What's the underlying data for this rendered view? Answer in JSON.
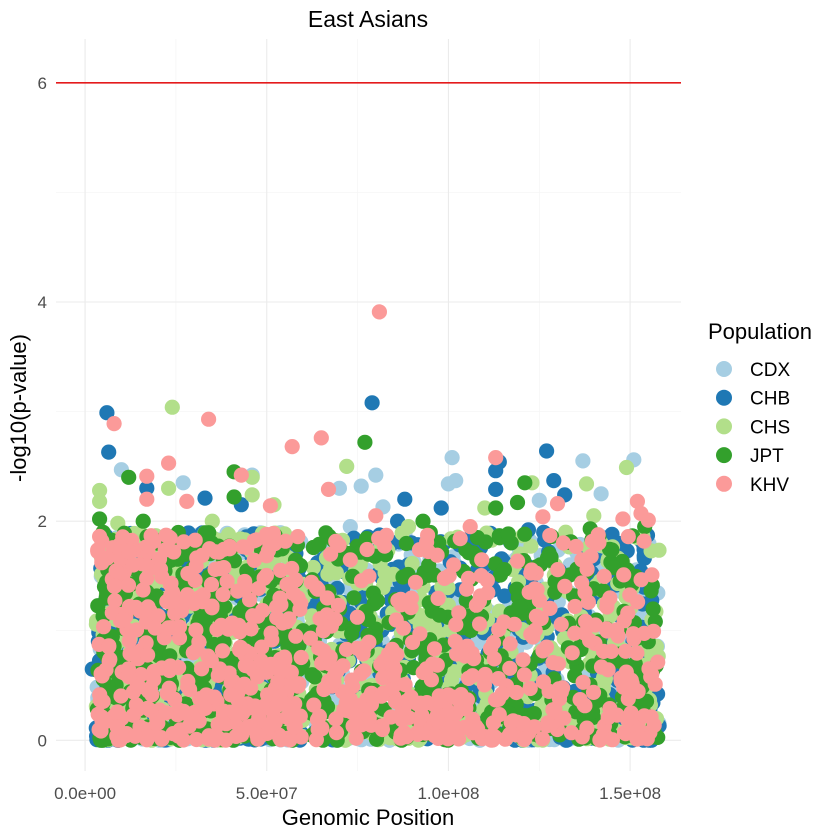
{
  "chart_data": {
    "type": "scatter",
    "title": "East Asians",
    "xlabel": "Genomic Position",
    "ylabel": "-log10(p-value)",
    "xlim": [
      -8000000,
      164000000
    ],
    "ylim": [
      -0.28,
      6.4
    ],
    "x_ticks": [
      0,
      50000000,
      100000000,
      150000000
    ],
    "x_tick_labels": [
      "0.0e+00",
      "5.0e+07",
      "1.0e+08",
      "1.5e+08"
    ],
    "y_ticks": [
      0,
      2,
      4,
      6
    ],
    "y_tick_labels": [
      "0",
      "2",
      "4",
      "6"
    ],
    "grid": true,
    "threshold": {
      "y": 6,
      "color": "#e41a1c"
    },
    "legend": {
      "title": "Population",
      "placement": "right"
    },
    "series": [
      {
        "name": "CDX",
        "color": "#a6cee3",
        "points": [
          [
            10000000,
            2.47
          ],
          [
            27000000,
            2.35
          ],
          [
            46000000,
            2.42
          ],
          [
            70000000,
            2.3
          ],
          [
            73000000,
            1.95
          ],
          [
            76000000,
            2.32
          ],
          [
            80000000,
            2.42
          ],
          [
            82000000,
            2.13
          ],
          [
            100000000,
            2.34
          ],
          [
            101000000,
            2.58
          ],
          [
            102000000,
            2.37
          ],
          [
            125000000,
            2.19
          ],
          [
            137000000,
            2.55
          ],
          [
            142000000,
            2.25
          ],
          [
            151000000,
            2.56
          ],
          [
            155000000,
            1.25
          ],
          [
            58000000,
            1.55
          ],
          [
            30000000,
            1.6
          ]
        ]
      },
      {
        "name": "CHB",
        "color": "#1f78b4",
        "points": [
          [
            6000000,
            2.99
          ],
          [
            6500000,
            2.63
          ],
          [
            17000000,
            2.3
          ],
          [
            33000000,
            2.21
          ],
          [
            43000000,
            2.15
          ],
          [
            79000000,
            3.08
          ],
          [
            88000000,
            2.2
          ],
          [
            98000000,
            2.12
          ],
          [
            114000000,
            2.54
          ],
          [
            113000000,
            2.46
          ],
          [
            113000000,
            2.29
          ],
          [
            122000000,
            1.92
          ],
          [
            127000000,
            2.64
          ],
          [
            129000000,
            2.37
          ],
          [
            132000000,
            2.24
          ],
          [
            145000000,
            1.88
          ],
          [
            156000000,
            0.45
          ],
          [
            2000000,
            0.65
          ],
          [
            64000000,
            1.62
          ],
          [
            62000000,
            1.45
          ],
          [
            86000000,
            2.0
          ]
        ]
      },
      {
        "name": "CHS",
        "color": "#b2df8a",
        "points": [
          [
            4000000,
            2.28
          ],
          [
            4000000,
            2.18
          ],
          [
            9000000,
            1.98
          ],
          [
            24000000,
            3.04
          ],
          [
            23000000,
            2.3
          ],
          [
            46000000,
            2.4
          ],
          [
            46000000,
            2.24
          ],
          [
            52000000,
            2.15
          ],
          [
            72000000,
            2.5
          ],
          [
            89000000,
            1.95
          ],
          [
            110000000,
            2.12
          ],
          [
            123000000,
            2.35
          ],
          [
            138000000,
            2.34
          ],
          [
            140000000,
            2.05
          ],
          [
            149000000,
            2.49
          ],
          [
            152000000,
            1.85
          ],
          [
            60000000,
            1.3
          ],
          [
            35000000,
            2.0
          ],
          [
            156000000,
            1.1
          ]
        ]
      },
      {
        "name": "JPT",
        "color": "#33a02c",
        "points": [
          [
            4000000,
            2.02
          ],
          [
            12000000,
            2.4
          ],
          [
            16000000,
            2.0
          ],
          [
            41000000,
            2.45
          ],
          [
            41000000,
            2.22
          ],
          [
            77000000,
            2.72
          ],
          [
            93000000,
            2.0
          ],
          [
            113000000,
            2.12
          ],
          [
            119000000,
            2.17
          ],
          [
            121000000,
            2.35
          ],
          [
            139000000,
            1.93
          ],
          [
            154000000,
            1.95
          ],
          [
            60000000,
            1.0
          ],
          [
            155000000,
            0.9
          ],
          [
            20000000,
            1.8
          ],
          [
            108000000,
            1.85
          ]
        ]
      },
      {
        "name": "KHV",
        "color": "#fb9a99",
        "points": [
          [
            4000000,
            1.86
          ],
          [
            8000000,
            2.89
          ],
          [
            17000000,
            2.41
          ],
          [
            17000000,
            2.2
          ],
          [
            23000000,
            2.53
          ],
          [
            28000000,
            2.18
          ],
          [
            34000000,
            2.93
          ],
          [
            43000000,
            2.42
          ],
          [
            51000000,
            2.14
          ],
          [
            57000000,
            2.68
          ],
          [
            65000000,
            2.76
          ],
          [
            67000000,
            2.29
          ],
          [
            81000000,
            3.91
          ],
          [
            80000000,
            2.05
          ],
          [
            106000000,
            1.95
          ],
          [
            113000000,
            2.58
          ],
          [
            126000000,
            2.04
          ],
          [
            130000000,
            2.16
          ],
          [
            148000000,
            2.02
          ],
          [
            152000000,
            2.18
          ],
          [
            153000000,
            2.07
          ],
          [
            155000000,
            2.01
          ],
          [
            156000000,
            1.51
          ]
        ]
      }
    ],
    "dense_bands": [
      {
        "x_range": [
          3000000,
          60000000
        ],
        "y_range": [
          0,
          1.9
        ]
      },
      {
        "x_range": [
          62000000,
          158000000
        ],
        "y_range": [
          0,
          1.9
        ]
      }
    ]
  }
}
